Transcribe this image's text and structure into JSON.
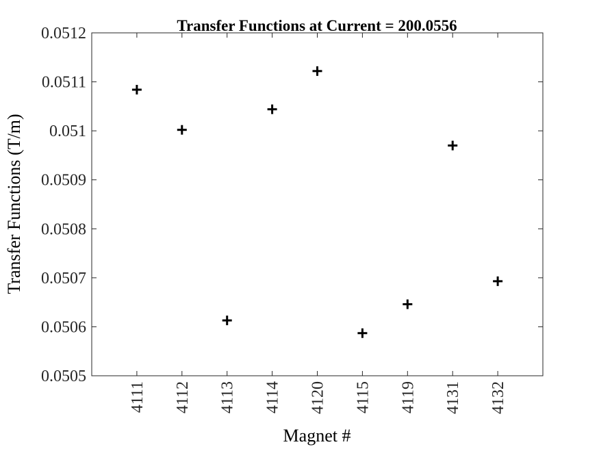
{
  "chart_data": {
    "type": "scatter",
    "title": "Transfer Functions at Current = 200.0556",
    "xlabel": "Magnet #",
    "ylabel": "Transfer Functions (T/m)",
    "categories": [
      "4111",
      "4112",
      "4113",
      "4114",
      "4120",
      "4115",
      "4119",
      "4131",
      "4132"
    ],
    "values": [
      0.051084,
      0.051002,
      0.050613,
      0.051044,
      0.051122,
      0.050587,
      0.050646,
      0.05097,
      0.050693
    ],
    "xlim": [
      0,
      10
    ],
    "ylim": [
      0.0505,
      0.0512
    ],
    "yticks": [
      "0.0505",
      "0.0506",
      "0.0507",
      "0.0508",
      "0.0509",
      "0.051",
      "0.0511",
      "0.0512"
    ],
    "marker": "plus",
    "marker_color": "#000000",
    "grid": false,
    "legend": "none"
  }
}
